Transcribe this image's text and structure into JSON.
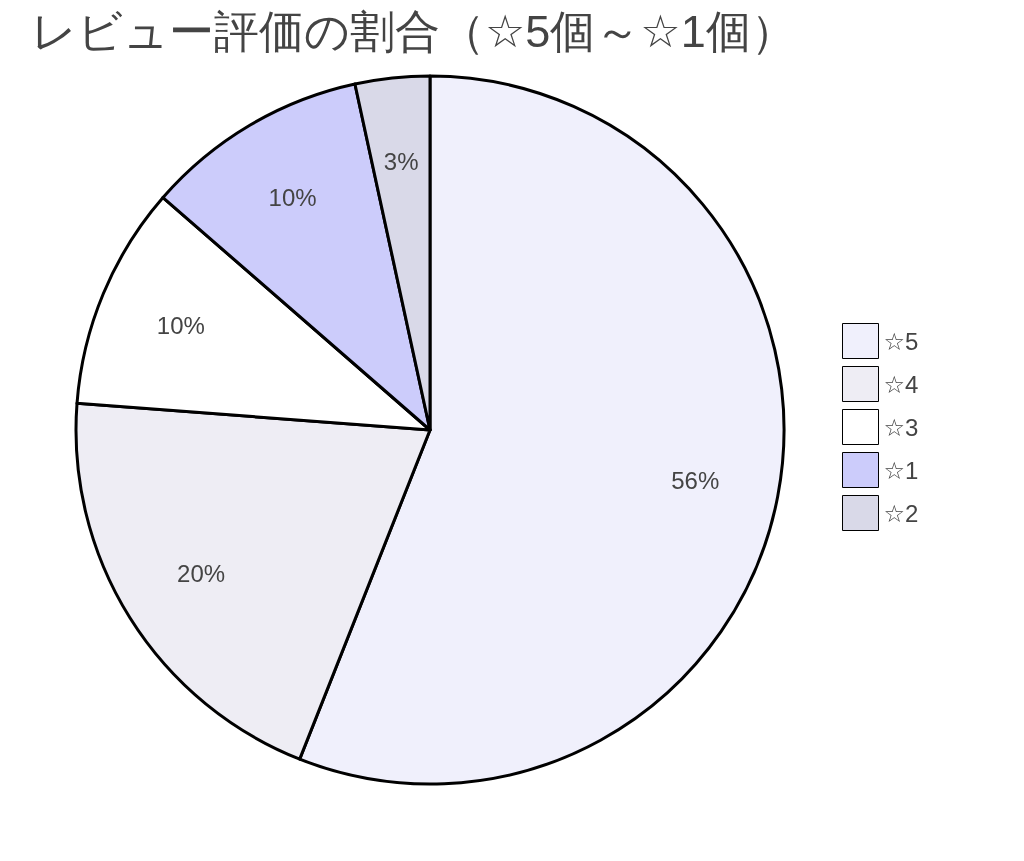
{
  "chart_data": {
    "type": "pie",
    "title": "レビュー評価の割合（☆5個～☆1個）",
    "categories": [
      "☆5",
      "☆4",
      "☆3",
      "☆1",
      "☆2"
    ],
    "values": [
      56,
      20.2,
      10.2,
      10.2,
      3.4
    ],
    "value_labels": [
      "56%",
      "20%",
      "10%",
      "10%",
      "3%"
    ],
    "colors": [
      "#f0f0fc",
      "#eeedf4",
      "#ffffff",
      "#ccccfb",
      "#d9d9e8"
    ],
    "legend": "right"
  }
}
